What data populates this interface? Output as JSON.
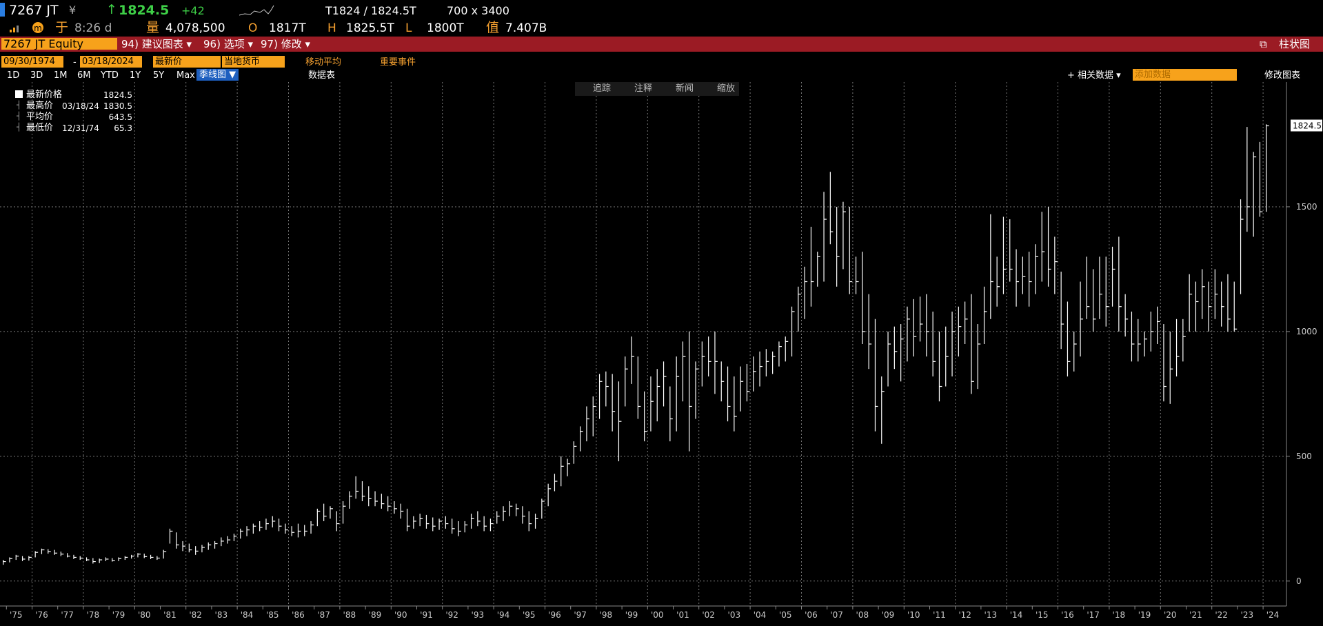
{
  "header": {
    "ticker": "7267 JT",
    "currency": "¥",
    "last": "1824.5",
    "change": "+42",
    "bid_ask": "T1824 / 1824.5T",
    "size": "700 x 3400",
    "time_label": "于",
    "time": "8:26 d",
    "volume_label": "量",
    "volume": "4,078,500",
    "open_label": "O",
    "open": "1817T",
    "high_label": "H",
    "high": "1825.5T",
    "low_label": "L",
    "low": "1800T",
    "value_label": "值",
    "value": "7.407B"
  },
  "menu": {
    "security": "7267 JT Equity",
    "items": [
      "94) 建议图表 ▾",
      "96) 选项 ▾",
      "97) 修改 ▾"
    ],
    "chart_kind": "柱状图"
  },
  "toolbar": {
    "start": "09/30/1974",
    "dash": "-",
    "end": "03/18/2024",
    "field": "最新价",
    "ccy": "当地货币",
    "options": [
      "移动平均",
      "重要事件"
    ],
    "periods": [
      "1D",
      "3D",
      "1M",
      "6M",
      "YTD",
      "1Y",
      "5Y",
      "Max"
    ],
    "frequency": "季线图 ▼",
    "table": "数据表",
    "related": "+ 相关数据 ▾",
    "add": "添加数据",
    "edit": "修改图表",
    "tools": [
      "追踪",
      "注释",
      "新闻",
      "缩放"
    ]
  },
  "legend": {
    "rows": [
      {
        "name": "最新价格",
        "value": 1824.5
      },
      {
        "name": "最高价",
        "date": "03/18/24",
        "value": 1830.5
      },
      {
        "name": "平均价",
        "value": 643.5
      },
      {
        "name": "最低价",
        "date": "12/31/74",
        "value": 65.3
      }
    ]
  },
  "chart_data": {
    "type": "ohlc",
    "color": "#ffffff",
    "grid": true,
    "ylim": [
      -100,
      2000
    ],
    "yticks": [
      0,
      500,
      1000,
      1500
    ],
    "categories": [
      null,
      "'75",
      null,
      null,
      null,
      "'76",
      null,
      null,
      null,
      "'77",
      null,
      null,
      null,
      "'78",
      null,
      null,
      null,
      "'79",
      null,
      null,
      null,
      "'80",
      null,
      null,
      null,
      "'81",
      null,
      null,
      null,
      "'82",
      null,
      null,
      null,
      "'83",
      null,
      null,
      null,
      "'84",
      null,
      null,
      null,
      "'85",
      null,
      null,
      null,
      "'86",
      null,
      null,
      null,
      "'87",
      null,
      null,
      null,
      "'88",
      null,
      null,
      null,
      "'89",
      null,
      null,
      null,
      "'90",
      null,
      null,
      null,
      "'91",
      null,
      null,
      null,
      "'92",
      null,
      null,
      null,
      "'93",
      null,
      null,
      null,
      "'94",
      null,
      null,
      null,
      "'95",
      null,
      null,
      null,
      "'96",
      null,
      null,
      null,
      "'97",
      null,
      null,
      null,
      "'98",
      null,
      null,
      null,
      "'99",
      null,
      null,
      null,
      "'00",
      null,
      null,
      null,
      "'01",
      null,
      null,
      null,
      "'02",
      null,
      null,
      null,
      "'03",
      null,
      null,
      null,
      "'04",
      null,
      null,
      null,
      "'05",
      null,
      null,
      null,
      "'06",
      null,
      null,
      null,
      "'07",
      null,
      null,
      null,
      "'08",
      null,
      null,
      null,
      "'09",
      null,
      null,
      null,
      "'10",
      null,
      null,
      null,
      "'11",
      null,
      null,
      null,
      "'12",
      null,
      null,
      null,
      "'13",
      null,
      null,
      null,
      "'14",
      null,
      null,
      null,
      "'15",
      null,
      null,
      null,
      "'16",
      null,
      null,
      null,
      "'17",
      null,
      null,
      null,
      "'18",
      null,
      null,
      null,
      "'19",
      null,
      null,
      null,
      "'20",
      null,
      null,
      null,
      "'21",
      null,
      null,
      null,
      "'22",
      null,
      null,
      null,
      "'23",
      null,
      null,
      null,
      "'24"
    ],
    "high": [
      85,
      95,
      105,
      100,
      100,
      120,
      130,
      128,
      125,
      118,
      112,
      105,
      100,
      95,
      92,
      90,
      95,
      92,
      95,
      100,
      105,
      112,
      110,
      105,
      100,
      125,
      210,
      195,
      160,
      150,
      140,
      145,
      155,
      160,
      175,
      180,
      190,
      210,
      220,
      230,
      240,
      250,
      260,
      250,
      230,
      220,
      230,
      225,
      240,
      290,
      310,
      300,
      280,
      320,
      360,
      420,
      400,
      380,
      360,
      350,
      340,
      320,
      310,
      290,
      260,
      270,
      265,
      255,
      250,
      260,
      250,
      240,
      240,
      270,
      280,
      260,
      250,
      280,
      300,
      320,
      310,
      300,
      280,
      270,
      330,
      390,
      430,
      500,
      490,
      560,
      620,
      700,
      740,
      830,
      840,
      830,
      800,
      900,
      980,
      900,
      760,
      820,
      850,
      880,
      780,
      900,
      960,
      1000,
      880,
      960,
      980,
      1000,
      880,
      860,
      820,
      860,
      870,
      900,
      920,
      930,
      920,
      960,
      980,
      1100,
      1180,
      1260,
      1420,
      1320,
      1560,
      1640,
      1500,
      1520,
      1500,
      1300,
      1320,
      1150,
      1050,
      820,
      1000,
      1020,
      1030,
      1100,
      1130,
      1140,
      1150,
      1080,
      1000,
      1020,
      1080,
      1100,
      1120,
      1150,
      1030,
      1180,
      1470,
      1300,
      1460,
      1450,
      1330,
      1300,
      1320,
      1350,
      1480,
      1500,
      1380,
      1240,
      1120,
      1000,
      1200,
      1300,
      1250,
      1300,
      1300,
      1340,
      1380,
      1150,
      1080,
      1050,
      1000,
      1080,
      1100,
      1030,
      1000,
      1050,
      1050,
      1230,
      1200,
      1250,
      1200,
      1250,
      1200,
      1230,
      1200,
      1530,
      1820,
      1720,
      1760,
      1830.5
    ],
    "low": [
      65.3,
      75,
      85,
      80,
      82,
      95,
      108,
      110,
      105,
      100,
      95,
      88,
      85,
      80,
      70,
      72,
      80,
      78,
      80,
      85,
      90,
      95,
      92,
      88,
      85,
      90,
      150,
      130,
      120,
      115,
      105,
      115,
      125,
      130,
      140,
      150,
      160,
      170,
      180,
      190,
      200,
      205,
      215,
      200,
      190,
      180,
      175,
      180,
      190,
      220,
      240,
      250,
      200,
      230,
      290,
      330,
      320,
      300,
      300,
      290,
      280,
      270,
      250,
      200,
      210,
      220,
      210,
      200,
      205,
      210,
      190,
      180,
      195,
      210,
      220,
      200,
      200,
      230,
      240,
      260,
      260,
      230,
      200,
      210,
      250,
      300,
      360,
      380,
      420,
      470,
      520,
      560,
      580,
      650,
      700,
      600,
      480,
      700,
      790,
      650,
      560,
      600,
      640,
      700,
      560,
      600,
      720,
      520,
      650,
      780,
      820,
      750,
      720,
      640,
      600,
      680,
      720,
      760,
      780,
      820,
      830,
      860,
      880,
      900,
      1000,
      1050,
      1100,
      1180,
      1200,
      1350,
      1180,
      1250,
      1150,
      1150,
      950,
      850,
      600,
      550,
      780,
      850,
      800,
      880,
      900,
      960,
      900,
      820,
      720,
      780,
      820,
      900,
      950,
      750,
      770,
      950,
      1050,
      1100,
      1150,
      1200,
      1100,
      1150,
      1100,
      1150,
      1200,
      1180,
      1150,
      930,
      820,
      840,
      900,
      1050,
      1000,
      1050,
      1020,
      1100,
      1000,
      980,
      880,
      880,
      900,
      920,
      950,
      720,
      710,
      820,
      880,
      1000,
      1000,
      1050,
      1000,
      1050,
      1020,
      1000,
      1000,
      1150,
      1400,
      1380,
      1460,
      1480
    ],
    "close": [
      78,
      90,
      100,
      88,
      95,
      115,
      125,
      118,
      112,
      108,
      100,
      95,
      92,
      85,
      78,
      85,
      88,
      82,
      90,
      95,
      100,
      108,
      98,
      95,
      92,
      118,
      200,
      145,
      140,
      125,
      120,
      135,
      145,
      150,
      160,
      165,
      180,
      200,
      205,
      220,
      215,
      230,
      240,
      220,
      205,
      195,
      200,
      200,
      225,
      280,
      260,
      290,
      230,
      300,
      340,
      360,
      340,
      330,
      320,
      310,
      300,
      290,
      280,
      220,
      240,
      250,
      230,
      220,
      240,
      230,
      210,
      200,
      225,
      250,
      240,
      220,
      230,
      260,
      280,
      300,
      290,
      260,
      230,
      250,
      320,
      370,
      400,
      460,
      470,
      540,
      600,
      650,
      700,
      800,
      780,
      680,
      640,
      850,
      900,
      700,
      600,
      720,
      780,
      820,
      650,
      820,
      900,
      700,
      850,
      900,
      880,
      880,
      800,
      700,
      660,
      800,
      760,
      840,
      860,
      880,
      900,
      940,
      960,
      1080,
      1150,
      1200,
      1200,
      1300,
      1450,
      1400,
      1300,
      1480,
      1200,
      1200,
      1000,
      950,
      700,
      760,
      950,
      920,
      970,
      1050,
      980,
      1030,
      1000,
      880,
      780,
      900,
      1000,
      1020,
      1050,
      800,
      950,
      1080,
      1200,
      1180,
      1250,
      1250,
      1200,
      1220,
      1200,
      1300,
      1320,
      1250,
      1280,
      1030,
      880,
      950,
      1050,
      1100,
      1050,
      1150,
      1100,
      1250,
      1100,
      1050,
      950,
      950,
      970,
      1000,
      1040,
      780,
      850,
      900,
      980,
      1150,
      1120,
      1180,
      1100,
      1150,
      1100,
      1050,
      1010,
      1450,
      1500,
      1700,
      1480,
      1824.5
    ]
  }
}
